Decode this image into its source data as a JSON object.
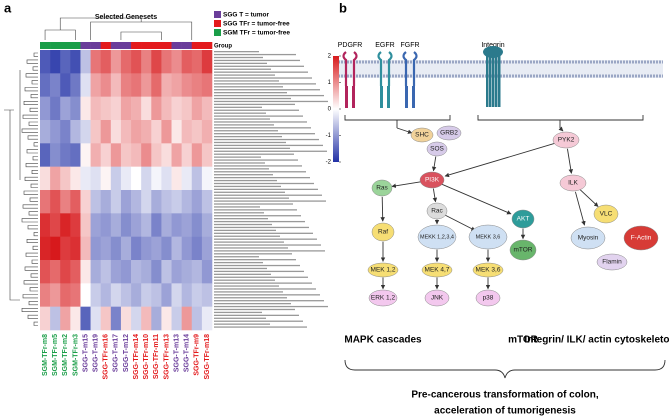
{
  "panel_a": {
    "label": "a",
    "title": "Selected Genesets",
    "group_label": "Group",
    "groups": [
      {
        "name": "SGG T = tumor",
        "color": "#6a3d9a"
      },
      {
        "name": "SGG TFr = tumor-free",
        "color": "#e31a1c"
      },
      {
        "name": "SGM TFr = tumor-free",
        "color": "#1a9e48"
      }
    ],
    "columns": [
      "SGM-TFr-m8",
      "SGM-TFr-m5",
      "SGM-TFr-m2",
      "SGM-TFr-m3",
      "SGG-T-m15",
      "SGG-T-m19",
      "SGG-TFr-m16",
      "SGG-T-m17",
      "SGG-T-m12",
      "SGG-TFr-m14",
      "SGG-TFr-m10",
      "SGG-TFr-m11",
      "SGG-TFr-m13",
      "SGG-T-m13",
      "SGG-T-m14",
      "SGG-TFr-m9",
      "SGG-TFr-m18"
    ],
    "column_groups": [
      2,
      2,
      2,
      2,
      0,
      0,
      1,
      0,
      0,
      1,
      1,
      1,
      1,
      0,
      0,
      1,
      1
    ],
    "clim": [
      -2,
      2
    ],
    "cticks": [
      2,
      1,
      0,
      -1,
      -2
    ],
    "values": [
      [
        -1.6,
        -1.8,
        -1.5,
        -1.7,
        -0.6,
        1.2,
        1.4,
        0.9,
        1.3,
        1.5,
        1.1,
        1.6,
        1.2,
        1.0,
        1.4,
        1.3,
        1.7
      ],
      [
        -1.4,
        -1.2,
        -1.6,
        -1.3,
        -0.3,
        0.8,
        1.0,
        0.6,
        1.1,
        1.2,
        0.9,
        1.3,
        0.7,
        0.8,
        1.0,
        1.1,
        1.2
      ],
      [
        -1.0,
        -1.3,
        -0.9,
        -1.1,
        0.2,
        0.6,
        0.5,
        0.4,
        0.8,
        0.7,
        0.3,
        0.9,
        0.6,
        0.4,
        0.5,
        0.8,
        0.6
      ],
      [
        -0.8,
        -1.0,
        -1.2,
        -0.7,
        -0.4,
        0.5,
        0.9,
        0.3,
        0.6,
        0.8,
        0.7,
        0.4,
        0.9,
        0.2,
        0.6,
        0.5,
        0.7
      ],
      [
        -1.5,
        -1.1,
        -1.3,
        -1.4,
        0.1,
        0.7,
        0.4,
        0.9,
        0.5,
        0.6,
        1.0,
        0.5,
        0.3,
        0.8,
        0.4,
        0.9,
        0.5
      ],
      [
        0.3,
        0.8,
        0.5,
        0.2,
        -0.2,
        -0.3,
        0.1,
        -0.5,
        -0.2,
        0.0,
        -0.4,
        -0.1,
        -0.3,
        0.2,
        -0.2,
        -0.6,
        -0.1
      ],
      [
        1.2,
        1.5,
        1.1,
        1.4,
        0.4,
        -0.6,
        -0.8,
        -0.5,
        -0.9,
        -0.7,
        -0.4,
        -0.8,
        -0.6,
        -0.5,
        -0.7,
        -0.9,
        -0.6
      ],
      [
        1.8,
        1.6,
        1.9,
        1.7,
        0.5,
        -0.9,
        -1.0,
        -0.8,
        -1.1,
        -0.9,
        -0.7,
        -1.2,
        -0.8,
        -1.0,
        -0.9,
        -1.1,
        -0.8
      ],
      [
        1.9,
        2.0,
        1.7,
        1.8,
        0.6,
        -1.0,
        -0.9,
        -1.1,
        -0.8,
        -1.2,
        -1.0,
        -0.9,
        -1.1,
        -0.7,
        -1.0,
        -1.2,
        -0.9
      ],
      [
        1.5,
        1.3,
        1.6,
        1.4,
        0.2,
        -0.8,
        -0.6,
        -0.9,
        -1.0,
        -0.7,
        -0.8,
        -1.1,
        -0.6,
        -0.9,
        -0.8,
        -0.7,
        -1.0
      ],
      [
        1.1,
        0.9,
        1.3,
        1.2,
        0.0,
        -0.5,
        -0.7,
        -0.4,
        -0.6,
        -0.8,
        -0.5,
        -0.6,
        -0.9,
        -0.4,
        -0.7,
        -0.5,
        -0.6
      ],
      [
        0.4,
        -0.6,
        0.8,
        0.2,
        -1.5,
        -0.3,
        0.5,
        -1.2,
        0.3,
        -0.4,
        0.6,
        -0.8,
        0.2,
        -0.5,
        0.9,
        -0.6,
        -0.2
      ]
    ]
  },
  "panel_b": {
    "label": "b",
    "receptors": [
      "PDGFR",
      "EGFR",
      "FGFR",
      "Integrin"
    ],
    "nodes": [
      "SHC",
      "GRB2",
      "SOS",
      "PYK2",
      "PI3K",
      "Ras",
      "Rac",
      "ILK",
      "AKT",
      "mTOR",
      "Raf",
      "MEKK 1,2,3,4",
      "MEKK 3,6",
      "MEK 1,2",
      "MEK 4,7",
      "MEK 3,6",
      "ERK 1,2",
      "JNK",
      "p38",
      "VLC",
      "Myosin",
      "F-Actin",
      "Flamin"
    ],
    "branches": [
      "MAPK cascades",
      "mTOR",
      "Integrin/ ILK/ actin cytoskeleton"
    ],
    "conclusion": [
      "Pre-cancerous transformation of colon,",
      "acceleration of tumorigenesis"
    ]
  }
}
